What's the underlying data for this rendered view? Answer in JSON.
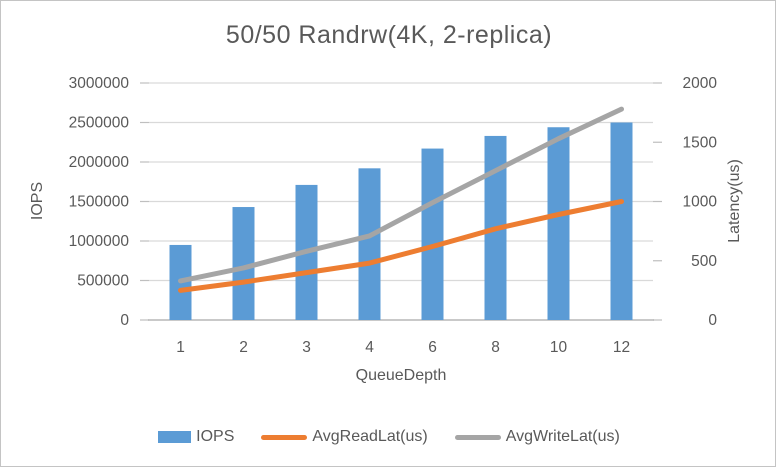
{
  "chart_data": {
    "type": "bar",
    "subtype": "combo-bar-line-dual-axis",
    "title": "50/50 Randrw(4K, 2-replica)",
    "xlabel": "QueueDepth",
    "ylabel_left": "IOPS",
    "ylabel_right": "Latency(us)",
    "categories": [
      "1",
      "2",
      "3",
      "4",
      "6",
      "8",
      "10",
      "12"
    ],
    "series": [
      {
        "name": "IOPS",
        "type": "bar",
        "axis": "left",
        "color": "#5B9BD5",
        "values": [
          950000,
          1430000,
          1710000,
          1920000,
          2170000,
          2330000,
          2440000,
          2500000
        ]
      },
      {
        "name": "AvgReadLat(us)",
        "type": "line",
        "axis": "right",
        "color": "#ED7D31",
        "values": [
          250,
          320,
          400,
          480,
          620,
          770,
          890,
          1000
        ]
      },
      {
        "name": "AvgWriteLat(us)",
        "type": "line",
        "axis": "right",
        "color": "#A5A5A5",
        "values": [
          330,
          440,
          580,
          710,
          990,
          1260,
          1530,
          1780
        ]
      }
    ],
    "ylim_left": [
      0,
      3000000
    ],
    "ylim_right": [
      0,
      2000
    ],
    "left_axis_ticks": [
      "3000000",
      "2500000",
      "2000000",
      "1500000",
      "1000000",
      "500000",
      "0"
    ],
    "right_axis_ticks": [
      "2000",
      "1500",
      "1000",
      "500",
      "0"
    ],
    "grid": true,
    "legend_position": "bottom"
  }
}
